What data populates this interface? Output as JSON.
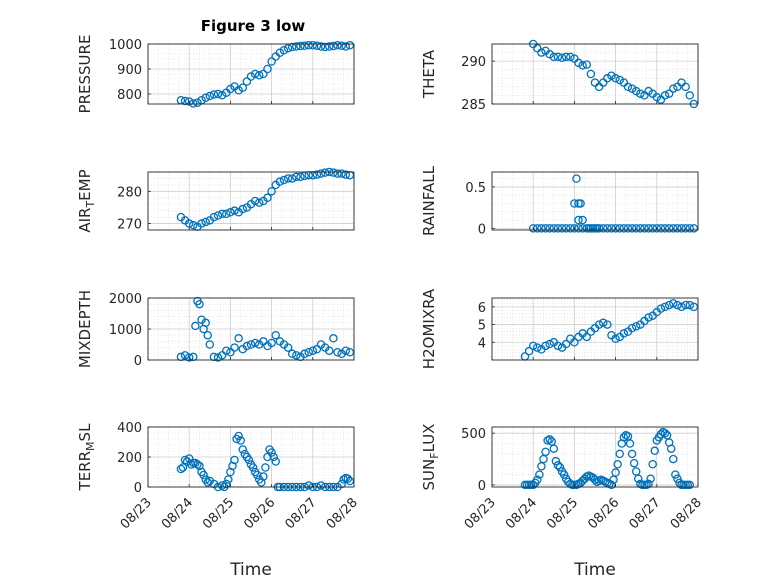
{
  "figure": {
    "title": "Figure 3 low",
    "marker_color": "#0072BD",
    "date_ticks": [
      "08/23",
      "08/24",
      "08/25",
      "08/26",
      "08/27",
      "08/28"
    ],
    "xlabel": "Time"
  },
  "chart_data": [
    {
      "type": "scatter",
      "ylabel": "PRESSURE",
      "ylim": [
        760,
        1000
      ],
      "yticks": [
        800,
        900,
        1000
      ],
      "xlim": [
        "08/23",
        "08/28"
      ],
      "grid": true,
      "title": "Figure 3 low",
      "series": [
        {
          "x": [
            23.8,
            23.9,
            24.0,
            24.1,
            24.2,
            24.3,
            24.4,
            24.5,
            24.6,
            24.7,
            24.8,
            24.9,
            25.0,
            25.1,
            25.2,
            25.3,
            25.4,
            25.5,
            25.6,
            25.7,
            25.8,
            25.9,
            26.0,
            26.1,
            26.2,
            26.3,
            26.4,
            26.5,
            26.6,
            26.7,
            26.8,
            26.9,
            27.0,
            27.1,
            27.2,
            27.3,
            27.4,
            27.5,
            27.6,
            27.7,
            27.8,
            27.9
          ],
          "y": [
            775,
            772,
            770,
            762,
            765,
            775,
            785,
            792,
            798,
            800,
            795,
            805,
            820,
            830,
            815,
            825,
            850,
            870,
            880,
            875,
            880,
            900,
            930,
            950,
            965,
            975,
            983,
            988,
            990,
            992,
            993,
            995,
            995,
            993,
            990,
            988,
            990,
            992,
            995,
            993,
            990,
            995
          ]
        }
      ]
    },
    {
      "type": "scatter",
      "ylabel": "THETA",
      "ylim": [
        285,
        292
      ],
      "yticks": [
        285,
        290
      ],
      "xlim": [
        "08/23",
        "08/28"
      ],
      "grid": true,
      "series": [
        {
          "x": [
            24.0,
            24.1,
            24.2,
            24.3,
            24.4,
            24.5,
            24.6,
            24.7,
            24.8,
            24.9,
            25.0,
            25.1,
            25.2,
            25.3,
            25.4,
            25.5,
            25.6,
            25.7,
            25.8,
            25.9,
            26.0,
            26.1,
            26.2,
            26.3,
            26.4,
            26.5,
            26.6,
            26.7,
            26.8,
            26.9,
            27.0,
            27.1,
            27.2,
            27.3,
            27.4,
            27.5,
            27.6,
            27.7,
            27.8,
            27.9
          ],
          "y": [
            292,
            291.5,
            291,
            291.2,
            290.8,
            290.5,
            290.5,
            290.4,
            290.5,
            290.5,
            290.3,
            289.8,
            289.5,
            289.6,
            288.5,
            287.5,
            287,
            287.5,
            288,
            288.3,
            288,
            287.8,
            287.5,
            287,
            286.8,
            286.5,
            286.2,
            286,
            286.5,
            286.2,
            285.8,
            285.5,
            286,
            286.2,
            286.8,
            287,
            287.5,
            287,
            286,
            285
          ]
        }
      ]
    },
    {
      "type": "scatter",
      "ylabel": "AIR_TEMP",
      "ylim": [
        268,
        286
      ],
      "yticks": [
        270,
        280
      ],
      "xlim": [
        "08/23",
        "08/28"
      ],
      "grid": true,
      "series": [
        {
          "x": [
            23.8,
            23.9,
            24.0,
            24.1,
            24.2,
            24.3,
            24.4,
            24.5,
            24.6,
            24.7,
            24.8,
            24.9,
            25.0,
            25.1,
            25.2,
            25.3,
            25.4,
            25.5,
            25.6,
            25.7,
            25.8,
            25.9,
            26.0,
            26.1,
            26.2,
            26.3,
            26.4,
            26.5,
            26.6,
            26.7,
            26.8,
            26.9,
            27.0,
            27.1,
            27.2,
            27.3,
            27.4,
            27.5,
            27.6,
            27.7,
            27.8,
            27.9
          ],
          "y": [
            272,
            271,
            270,
            269.5,
            269,
            270,
            270.5,
            271,
            272,
            272.5,
            273,
            273,
            273.5,
            274,
            273.5,
            274.5,
            275,
            276,
            277,
            276.5,
            277,
            278,
            280,
            282,
            283,
            283.5,
            284,
            284,
            284.5,
            284.5,
            284.8,
            285,
            285,
            285.2,
            285.5,
            285.8,
            286,
            285.8,
            285.5,
            285.5,
            285.2,
            285
          ]
        }
      ]
    },
    {
      "type": "scatter",
      "ylabel": "RAINFALL",
      "ylim": [
        -0.02,
        0.68
      ],
      "yticks": [
        0,
        0.5
      ],
      "xlim": [
        "08/23",
        "08/28"
      ],
      "grid": true,
      "series": [
        {
          "x": [
            24.0,
            24.1,
            24.2,
            24.3,
            24.4,
            24.5,
            24.6,
            24.7,
            24.8,
            24.9,
            25.0,
            25.1,
            25.2,
            25.3,
            25.35,
            25.4,
            25.45,
            25.5,
            25.55,
            25.6,
            25.7,
            25.8,
            25.9,
            26.0,
            26.1,
            26.2,
            26.3,
            26.4,
            26.5,
            26.6,
            26.7,
            26.8,
            26.9,
            27.0,
            27.1,
            27.2,
            27.3,
            27.4,
            27.5,
            27.6,
            27.7,
            27.8,
            27.9,
            25.0,
            25.05,
            25.1,
            25.15,
            25.1,
            25.2
          ],
          "y": [
            0,
            0,
            0,
            0,
            0,
            0,
            0,
            0,
            0,
            0,
            0,
            0,
            0,
            0,
            0,
            0,
            0,
            0,
            0,
            0,
            0,
            0,
            0,
            0,
            0,
            0,
            0,
            0,
            0,
            0,
            0,
            0,
            0,
            0,
            0,
            0,
            0,
            0,
            0,
            0,
            0,
            0,
            0,
            0.3,
            0.6,
            0.3,
            0.3,
            0.1,
            0.1
          ]
        }
      ]
    },
    {
      "type": "scatter",
      "ylabel": "MIXDEPTH",
      "ylim": [
        0,
        2000
      ],
      "yticks": [
        0,
        1000,
        2000
      ],
      "xlim": [
        "08/23",
        "08/28"
      ],
      "grid": true,
      "series": [
        {
          "x": [
            23.8,
            23.9,
            24.0,
            24.1,
            24.15,
            24.2,
            24.25,
            24.3,
            24.35,
            24.4,
            24.45,
            24.5,
            24.6,
            24.7,
            24.8,
            24.9,
            25.0,
            25.1,
            25.2,
            25.3,
            25.4,
            25.5,
            25.6,
            25.7,
            25.8,
            25.9,
            26.0,
            26.1,
            26.2,
            26.3,
            26.4,
            26.5,
            26.6,
            26.7,
            26.8,
            26.9,
            27.0,
            27.1,
            27.2,
            27.3,
            27.4,
            27.5,
            27.6,
            27.7,
            27.8,
            27.9
          ],
          "y": [
            100,
            150,
            80,
            100,
            1100,
            1900,
            1800,
            1300,
            1000,
            1200,
            800,
            500,
            100,
            80,
            150,
            300,
            250,
            400,
            700,
            350,
            450,
            500,
            550,
            500,
            600,
            450,
            550,
            800,
            600,
            500,
            400,
            200,
            150,
            100,
            200,
            250,
            300,
            350,
            500,
            400,
            300,
            700,
            250,
            200,
            300,
            250
          ]
        }
      ]
    },
    {
      "type": "scatter",
      "ylabel": "H2OMIXRA",
      "ylim": [
        3,
        6.5
      ],
      "yticks": [
        4,
        5,
        6
      ],
      "xlim": [
        "08/23",
        "08/28"
      ],
      "grid": true,
      "series": [
        {
          "x": [
            23.8,
            23.9,
            24.0,
            24.1,
            24.2,
            24.3,
            24.4,
            24.5,
            24.6,
            24.7,
            24.8,
            24.9,
            25.0,
            25.1,
            25.2,
            25.3,
            25.4,
            25.5,
            25.6,
            25.7,
            25.8,
            25.9,
            26.0,
            26.1,
            26.2,
            26.3,
            26.4,
            26.5,
            26.6,
            26.7,
            26.8,
            26.9,
            27.0,
            27.1,
            27.2,
            27.3,
            27.4,
            27.5,
            27.6,
            27.7,
            27.8,
            27.9
          ],
          "y": [
            3.2,
            3.5,
            3.8,
            3.7,
            3.6,
            3.8,
            3.9,
            4.0,
            3.8,
            3.7,
            3.9,
            4.2,
            4.0,
            4.3,
            4.5,
            4.3,
            4.6,
            4.8,
            5.0,
            5.1,
            5.0,
            4.4,
            4.2,
            4.3,
            4.5,
            4.6,
            4.8,
            4.9,
            5.0,
            5.2,
            5.4,
            5.5,
            5.7,
            5.9,
            6.0,
            6.1,
            6.2,
            6.1,
            6.0,
            6.1,
            6.1,
            6.0
          ]
        }
      ]
    },
    {
      "type": "scatter",
      "ylabel": "TERR_MSL",
      "ylim": [
        0,
        400
      ],
      "yticks": [
        0,
        200,
        400
      ],
      "xlim": [
        "08/23",
        "08/28"
      ],
      "grid": true,
      "series": [
        {
          "x": [
            23.8,
            23.85,
            23.9,
            23.95,
            24.0,
            24.05,
            24.1,
            24.15,
            24.2,
            24.25,
            24.3,
            24.35,
            24.4,
            24.45,
            24.5,
            24.6,
            24.7,
            24.8,
            24.85,
            24.9,
            24.95,
            25.0,
            25.05,
            25.1,
            25.15,
            25.2,
            25.25,
            25.3,
            25.35,
            25.4,
            25.45,
            25.5,
            25.55,
            25.6,
            25.65,
            25.7,
            25.75,
            25.8,
            25.85,
            25.9,
            25.95,
            26.0,
            26.05,
            26.1,
            26.15,
            26.2,
            26.3,
            26.4,
            26.5,
            26.6,
            26.7,
            26.8,
            26.9,
            27.0,
            27.1,
            27.2,
            27.3,
            27.4,
            27.5,
            27.6,
            27.7,
            27.75,
            27.8,
            27.85,
            27.9
          ],
          "y": [
            120,
            130,
            180,
            170,
            190,
            150,
            160,
            160,
            150,
            140,
            100,
            80,
            50,
            30,
            40,
            20,
            0,
            10,
            0,
            20,
            50,
            100,
            140,
            180,
            320,
            340,
            310,
            250,
            220,
            200,
            180,
            150,
            130,
            100,
            80,
            50,
            30,
            70,
            130,
            200,
            250,
            230,
            200,
            170,
            0,
            0,
            0,
            0,
            0,
            0,
            0,
            0,
            10,
            0,
            0,
            10,
            0,
            0,
            0,
            0,
            20,
            50,
            60,
            55,
            40
          ]
        }
      ]
    },
    {
      "type": "scatter",
      "ylabel": "SUN_FLUX",
      "ylim": [
        -20,
        560
      ],
      "yticks": [
        0,
        500
      ],
      "xlim": [
        "08/23",
        "08/28"
      ],
      "grid": true,
      "series": [
        {
          "x": [
            23.8,
            23.85,
            23.9,
            23.95,
            24.0,
            24.05,
            24.1,
            24.15,
            24.2,
            24.25,
            24.3,
            24.35,
            24.4,
            24.45,
            24.5,
            24.55,
            24.6,
            24.65,
            24.7,
            24.75,
            24.8,
            24.85,
            24.9,
            24.95,
            25.0,
            25.05,
            25.1,
            25.15,
            25.2,
            25.25,
            25.3,
            25.35,
            25.4,
            25.45,
            25.5,
            25.55,
            25.6,
            25.65,
            25.7,
            25.75,
            25.8,
            25.85,
            25.9,
            25.95,
            26.0,
            26.05,
            26.1,
            26.15,
            26.2,
            26.25,
            26.3,
            26.35,
            26.4,
            26.45,
            26.5,
            26.55,
            26.6,
            26.65,
            26.7,
            26.75,
            26.8,
            26.85,
            26.9,
            26.95,
            27.0,
            27.05,
            27.1,
            27.15,
            27.2,
            27.25,
            27.3,
            27.35,
            27.4,
            27.45,
            27.5,
            27.55,
            27.6,
            27.65,
            27.7,
            27.75,
            27.8
          ],
          "y": [
            0,
            0,
            0,
            0,
            0,
            20,
            50,
            100,
            180,
            250,
            320,
            430,
            440,
            420,
            350,
            230,
            190,
            170,
            130,
            100,
            60,
            30,
            10,
            0,
            0,
            0,
            10,
            20,
            40,
            60,
            80,
            90,
            80,
            70,
            50,
            30,
            40,
            50,
            40,
            30,
            20,
            10,
            0,
            50,
            120,
            200,
            300,
            400,
            460,
            480,
            470,
            400,
            300,
            210,
            130,
            60,
            10,
            0,
            0,
            0,
            10,
            60,
            200,
            330,
            430,
            460,
            490,
            510,
            500,
            480,
            410,
            350,
            250,
            100,
            60,
            20,
            0,
            0,
            0,
            0,
            0
          ]
        }
      ]
    }
  ]
}
